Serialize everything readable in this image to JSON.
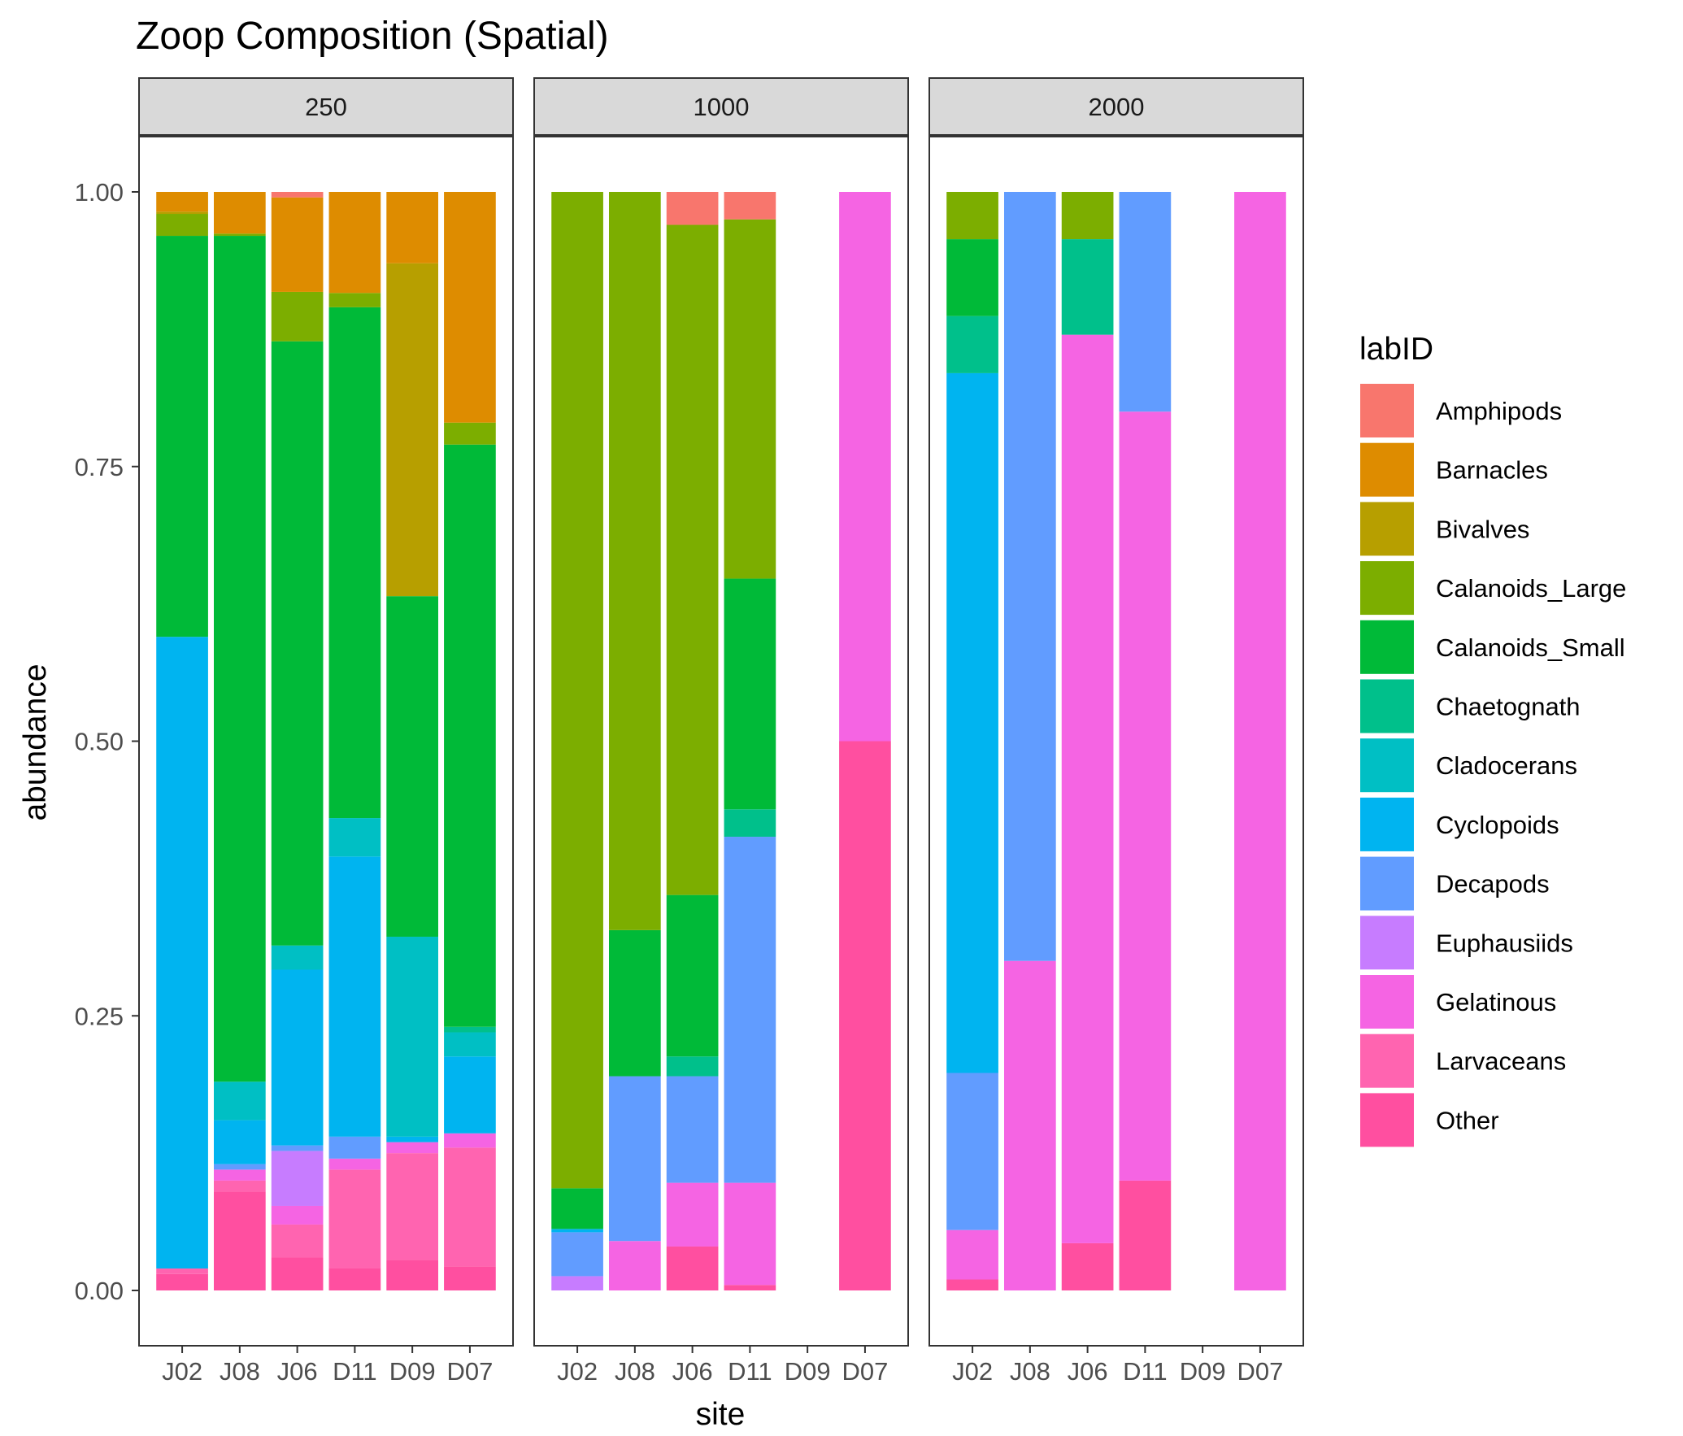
{
  "chart_data": {
    "type": "bar",
    "stacked": true,
    "title": "Zoop Composition (Spatial)",
    "xlabel": "site",
    "ylabel": "abundance",
    "ylim": [
      0,
      1
    ],
    "y_ticks": [
      "0.00",
      "0.25",
      "0.50",
      "0.75",
      "1.00"
    ],
    "categories": [
      "J02",
      "J08",
      "J06",
      "D11",
      "D09",
      "D07"
    ],
    "grid": false,
    "legend": {
      "title": "labID",
      "position": "right"
    },
    "series_names": [
      "Amphipods",
      "Barnacles",
      "Bivalves",
      "Calanoids_Large",
      "Calanoids_Small",
      "Chaetognath",
      "Cladocerans",
      "Cyclopoids",
      "Decapods",
      "Euphausiids",
      "Gelatinous",
      "Larvaceans",
      "Other"
    ],
    "series_colors": [
      "#F8766D",
      "#DE8C00",
      "#B79F00",
      "#7CAE00",
      "#00BA38",
      "#00C08B",
      "#00BFC4",
      "#00B4F0",
      "#619CFF",
      "#C77CFF",
      "#F564E3",
      "#FF64B0",
      "#FF4FA0"
    ],
    "stack_order_bottom_to_top": [
      "Other",
      "Larvaceans",
      "Gelatinous",
      "Euphausiids",
      "Decapods",
      "Cyclopoids",
      "Cladocerans",
      "Chaetognath",
      "Calanoids_Small",
      "Calanoids_Large",
      "Bivalves",
      "Barnacles",
      "Amphipods"
    ],
    "panels": [
      {
        "label": "250",
        "bars": [
          {
            "site": "J02",
            "values": {
              "Other": 0.015,
              "Larvaceans": 0.005,
              "Cyclopoids": 0.575,
              "Calanoids_Small": 0.365,
              "Calanoids_Large": 0.02,
              "Bivalves": 0.002,
              "Barnacles": 0.018
            }
          },
          {
            "site": "J08",
            "values": {
              "Other": 0.09,
              "Larvaceans": 0.01,
              "Gelatinous": 0.01,
              "Decapods": 0.005,
              "Cyclopoids": 0.04,
              "Cladocerans": 0.035,
              "Calanoids_Small": 0.77,
              "Calanoids_Large": 0.002,
              "Barnacles": 0.038
            }
          },
          {
            "site": "J06",
            "values": {
              "Other": 0.03,
              "Larvaceans": 0.03,
              "Gelatinous": 0.017,
              "Euphausiids": 0.05,
              "Decapods": 0.005,
              "Cyclopoids": 0.16,
              "Cladocerans": 0.022,
              "Calanoids_Small": 0.55,
              "Calanoids_Large": 0.045,
              "Barnacles": 0.086,
              "Amphipods": 0.005
            }
          },
          {
            "site": "D11",
            "values": {
              "Other": 0.02,
              "Larvaceans": 0.09,
              "Gelatinous": 0.01,
              "Decapods": 0.02,
              "Cyclopoids": 0.255,
              "Cladocerans": 0.035,
              "Calanoids_Small": 0.465,
              "Calanoids_Large": 0.013,
              "Barnacles": 0.092
            }
          },
          {
            "site": "D09",
            "values": {
              "Other": 0.028,
              "Larvaceans": 0.097,
              "Gelatinous": 0.01,
              "Cyclopoids": 0.005,
              "Cladocerans": 0.182,
              "Calanoids_Small": 0.31,
              "Bivalves": 0.303,
              "Barnacles": 0.065
            }
          },
          {
            "site": "D07",
            "values": {
              "Other": 0.022,
              "Larvaceans": 0.108,
              "Gelatinous": 0.013,
              "Cyclopoids": 0.07,
              "Cladocerans": 0.022,
              "Chaetognath": 0.005,
              "Calanoids_Small": 0.53,
              "Calanoids_Large": 0.02,
              "Barnacles": 0.21
            }
          }
        ]
      },
      {
        "label": "1000",
        "bars": [
          {
            "site": "J02",
            "values": {
              "Euphausiids": 0.013,
              "Decapods": 0.04,
              "Cyclopoids": 0.003,
              "Calanoids_Small": 0.037,
              "Calanoids_Large": 0.907
            }
          },
          {
            "site": "J08",
            "values": {
              "Gelatinous": 0.045,
              "Decapods": 0.15,
              "Calanoids_Small": 0.133,
              "Calanoids_Large": 0.672
            }
          },
          {
            "site": "J06",
            "values": {
              "Other": 0.04,
              "Gelatinous": 0.058,
              "Decapods": 0.097,
              "Chaetognath": 0.018,
              "Calanoids_Small": 0.147,
              "Calanoids_Large": 0.61,
              "Amphipods": 0.03
            }
          },
          {
            "site": "D11",
            "values": {
              "Other": 0.005,
              "Gelatinous": 0.093,
              "Decapods": 0.315,
              "Chaetognath": 0.025,
              "Calanoids_Small": 0.21,
              "Calanoids_Large": 0.327,
              "Amphipods": 0.025
            }
          },
          {
            "site": "D09",
            "values": {}
          },
          {
            "site": "D07",
            "values": {
              "Other": 0.5,
              "Gelatinous": 0.5
            }
          }
        ]
      },
      {
        "label": "2000",
        "bars": [
          {
            "site": "J02",
            "values": {
              "Other": 0.01,
              "Gelatinous": 0.045,
              "Decapods": 0.143,
              "Cyclopoids": 0.637,
              "Chaetognath": 0.052,
              "Calanoids_Small": 0.07,
              "Calanoids_Large": 0.043
            }
          },
          {
            "site": "J08",
            "values": {
              "Gelatinous": 0.3,
              "Decapods": 0.7
            }
          },
          {
            "site": "J06",
            "values": {
              "Other": 0.043,
              "Gelatinous": 0.827,
              "Chaetognath": 0.087,
              "Calanoids_Large": 0.043
            }
          },
          {
            "site": "D11",
            "values": {
              "Other": 0.1,
              "Gelatinous": 0.7,
              "Decapods": 0.2
            }
          },
          {
            "site": "D09",
            "values": {}
          },
          {
            "site": "D07",
            "values": {
              "Gelatinous": 1.0
            }
          }
        ]
      }
    ]
  }
}
